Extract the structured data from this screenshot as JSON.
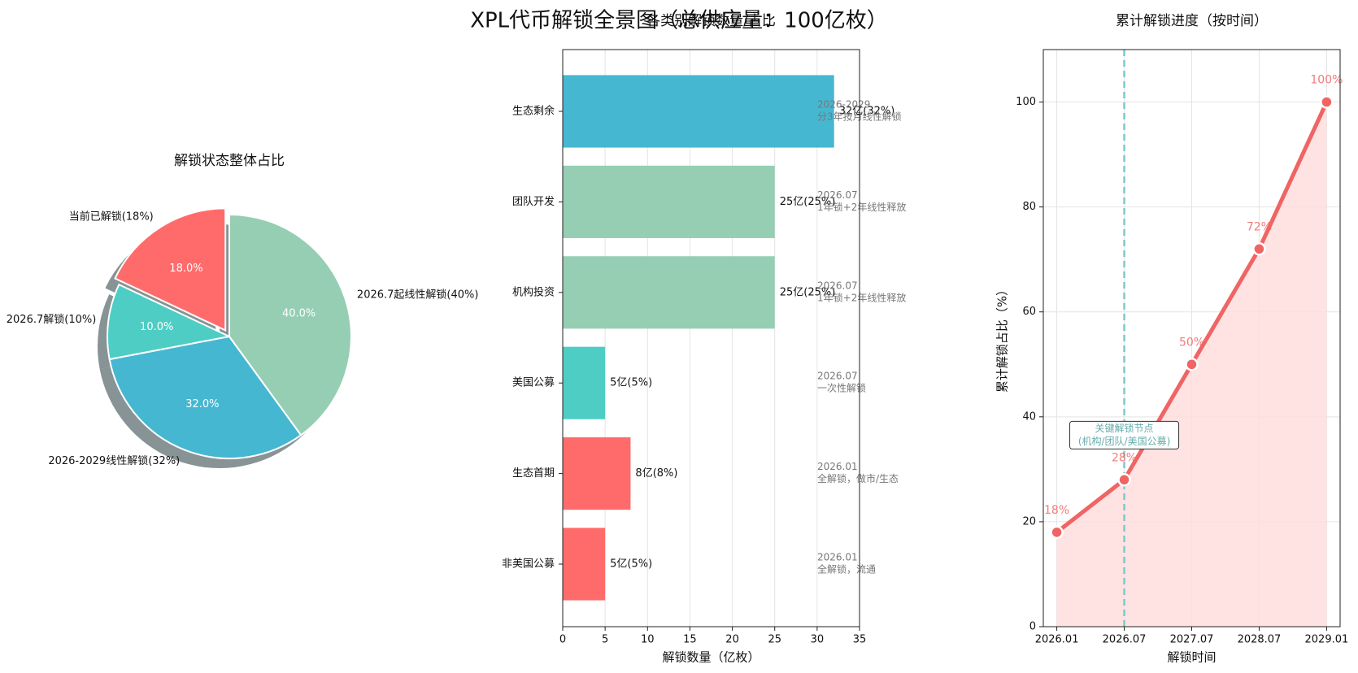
{
  "title": "XPL代币解锁全景图（总供应量：100亿枚）",
  "chart_data": [
    {
      "type": "pie",
      "title": "解锁状态整体占比",
      "categories": [
        "当前已解锁(18%)",
        "2026.7解锁(10%)",
        "2026-2029线性解锁(32%)",
        "2026.7起线性解锁(40%)"
      ],
      "values": [
        18,
        10,
        32,
        40
      ],
      "value_labels": [
        "18.0%",
        "10.0%",
        "32.0%",
        "40.0%"
      ],
      "colors": [
        "#ff6b6b",
        "#4ecdc4",
        "#45b7d1",
        "#96ceb4"
      ],
      "explode": [
        true,
        false,
        false,
        false
      ],
      "shadow": true
    },
    {
      "type": "barh",
      "title": "各类别解锁数量/占比",
      "categories": [
        "生态剩余",
        "团队开发",
        "机构投资",
        "美国公募",
        "生态首期",
        "非美国公募"
      ],
      "values": [
        32,
        25,
        25,
        5,
        8,
        5
      ],
      "value_labels": [
        "32亿(32%)",
        "25亿(25%)",
        "25亿(25%)",
        "5亿(5%)",
        "8亿(8%)",
        "5亿(5%)"
      ],
      "colors": [
        "#45b7d1",
        "#96ceb4",
        "#96ceb4",
        "#4ecdc4",
        "#ff6b6b",
        "#ff6b6b"
      ],
      "notes": [
        [
          "2026-2029",
          "分3年按月线性解锁"
        ],
        [
          "2026.07",
          "1年锁+2年线性释放"
        ],
        [
          "2026.07",
          "1年锁+2年线性释放"
        ],
        [
          "2026.07",
          "一次性解锁"
        ],
        [
          "2026.01",
          "全解锁，做市/生态"
        ],
        [
          "2026.01",
          "全解锁，流通"
        ]
      ],
      "xlabel": "解锁数量（亿枚）",
      "xlim": [
        0,
        35
      ],
      "xticks": [
        0,
        5,
        10,
        15,
        20,
        25,
        30,
        35
      ],
      "grid": true
    },
    {
      "type": "line",
      "title": "累计解锁进度（按时间）",
      "categories": [
        "2026.01",
        "2026.07",
        "2027.07",
        "2028.07",
        "2029.01"
      ],
      "values": [
        18,
        28,
        50,
        72,
        100
      ],
      "value_labels": [
        "18%",
        "28%",
        "50%",
        "72%",
        "100%"
      ],
      "color": "#f06464",
      "fill_color": "#ffdcdc",
      "xlabel": "解锁时间",
      "ylabel": "累计解锁占比（%）",
      "ylim": [
        0,
        110
      ],
      "yticks": [
        0,
        20,
        40,
        60,
        80,
        100
      ],
      "grid": true,
      "vline_index": 1,
      "vline_color": "#7ccaca",
      "annotation": [
        "关键解锁节点",
        "(机构/团队/美国公募)"
      ]
    }
  ]
}
